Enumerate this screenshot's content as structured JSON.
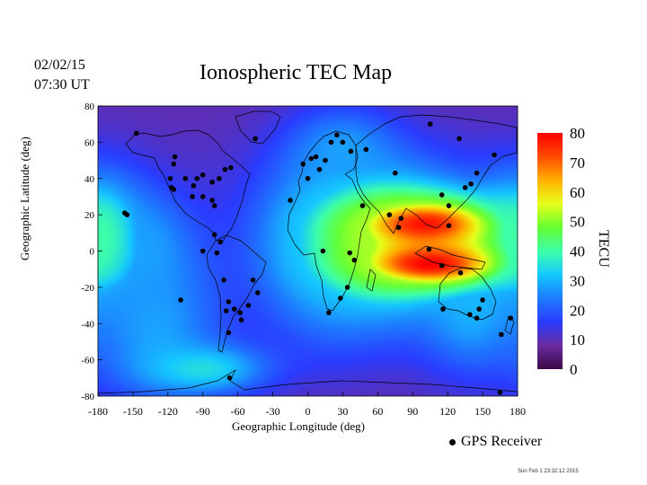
{
  "header": {
    "date": "02/02/15",
    "time": "07:30 UT",
    "title": "Ionospheric TEC Map"
  },
  "axes": {
    "xlabel": "Geographic Longitude (deg)",
    "ylabel": "Geographic Latitude (deg)",
    "xlim": [
      -180,
      180
    ],
    "ylim": [
      -80,
      80
    ],
    "x_ticks": [
      -180,
      -150,
      -120,
      -90,
      -60,
      -30,
      0,
      30,
      60,
      90,
      120,
      150,
      180
    ],
    "y_ticks": [
      80,
      60,
      40,
      20,
      0,
      -20,
      -40,
      -60,
      -80
    ]
  },
  "colorbar": {
    "title": "TECU",
    "min": 0,
    "max": 80,
    "ticks": [
      80,
      70,
      60,
      50,
      40,
      30,
      20,
      10,
      0
    ],
    "colormap": [
      "#3b0a45",
      "#6a2aa0",
      "#2a3cff",
      "#1e7bff",
      "#15c8ff",
      "#3dffa8",
      "#66ff33",
      "#e6ff1a",
      "#ffb000",
      "#ff4a00",
      "#ff0000"
    ]
  },
  "chart_data": {
    "type": "heatmap",
    "title": "Ionospheric TEC Map",
    "xlabel": "Geographic Longitude (deg)",
    "ylabel": "Geographic Latitude (deg)",
    "xlim": [
      -180,
      180
    ],
    "ylim": [
      -80,
      80
    ],
    "value_range": [
      0,
      80
    ],
    "value_label": "TECU",
    "anomalies": [
      {
        "lon": 100,
        "lat": 15,
        "value": 78,
        "lon_spread": 48,
        "lat_spread": 11
      },
      {
        "lon": 105,
        "lat": -7,
        "value": 80,
        "lon_spread": 48,
        "lat_spread": 10
      },
      {
        "lon": 65,
        "lat": 5,
        "value": 52,
        "lon_spread": 55,
        "lat_spread": 28
      },
      {
        "lon": 20,
        "lat": 5,
        "value": 32,
        "lon_spread": 40,
        "lat_spread": 35
      },
      {
        "lon": -178,
        "lat": 8,
        "value": 40,
        "lon_spread": 26,
        "lat_spread": 24
      },
      {
        "lon": -140,
        "lat": 0,
        "value": 28,
        "lon_spread": 30,
        "lat_spread": 22
      },
      {
        "lon": -130,
        "lat": -40,
        "value": 28,
        "lon_spread": 40,
        "lat_spread": 30
      },
      {
        "lon": -90,
        "lat": -65,
        "value": 35,
        "lon_spread": 40,
        "lat_spread": 10
      },
      {
        "lon": 140,
        "lat": -30,
        "value": 30,
        "lon_spread": 30,
        "lat_spread": 25
      },
      {
        "lon": 30,
        "lat": 55,
        "value": 28,
        "lon_spread": 30,
        "lat_spread": 15
      }
    ],
    "gps_receivers": [
      [
        -147,
        65
      ],
      [
        -115,
        48
      ],
      [
        -114,
        52
      ],
      [
        -118,
        40
      ],
      [
        -117,
        35
      ],
      [
        -115,
        34
      ],
      [
        -105,
        40
      ],
      [
        -95,
        40
      ],
      [
        -90,
        42
      ],
      [
        -98,
        36
      ],
      [
        -82,
        38
      ],
      [
        -76,
        40
      ],
      [
        -71,
        45
      ],
      [
        -66,
        46
      ],
      [
        -82,
        28
      ],
      [
        -99,
        30
      ],
      [
        -90,
        30
      ],
      [
        -80,
        25
      ],
      [
        -80,
        9
      ],
      [
        -75,
        5
      ],
      [
        -90,
        0
      ],
      [
        -78,
        -1
      ],
      [
        -157,
        21
      ],
      [
        -155,
        20
      ],
      [
        -109,
        -27
      ],
      [
        -72,
        -16
      ],
      [
        -58,
        -34
      ],
      [
        -70,
        -33
      ],
      [
        -63,
        -32
      ],
      [
        -57,
        -38
      ],
      [
        -68,
        -28
      ],
      [
        -47,
        -16
      ],
      [
        -43,
        -23
      ],
      [
        -51,
        -30
      ],
      [
        -68,
        -45
      ],
      [
        -67,
        -70
      ],
      [
        -45,
        62
      ],
      [
        -15,
        28
      ],
      [
        0,
        40
      ],
      [
        -4,
        48
      ],
      [
        3,
        51
      ],
      [
        7,
        52
      ],
      [
        10,
        45
      ],
      [
        15,
        50
      ],
      [
        20,
        60
      ],
      [
        25,
        64
      ],
      [
        30,
        60
      ],
      [
        37,
        55
      ],
      [
        50,
        56
      ],
      [
        75,
        43
      ],
      [
        105,
        70
      ],
      [
        130,
        62
      ],
      [
        80,
        18
      ],
      [
        70,
        20
      ],
      [
        47,
        25
      ],
      [
        34,
        -20
      ],
      [
        18,
        -34
      ],
      [
        28,
        -26
      ],
      [
        13,
        0
      ],
      [
        36,
        -1
      ],
      [
        40,
        -5
      ],
      [
        78,
        13
      ],
      [
        115,
        31
      ],
      [
        121,
        25
      ],
      [
        121,
        14
      ],
      [
        135,
        35
      ],
      [
        140,
        37
      ],
      [
        145,
        43
      ],
      [
        104,
        1
      ],
      [
        115,
        -8
      ],
      [
        116,
        -32
      ],
      [
        139,
        -35
      ],
      [
        145,
        -37
      ],
      [
        147,
        -32
      ],
      [
        150,
        -27
      ],
      [
        131,
        -12
      ],
      [
        166,
        -46
      ],
      [
        174,
        -37
      ],
      [
        160,
        53
      ],
      [
        165,
        -78
      ]
    ]
  },
  "legend": {
    "label": "GPS Receiver"
  },
  "footer": {
    "stamp": "Sun Feb 1 23:32:12 2015"
  }
}
